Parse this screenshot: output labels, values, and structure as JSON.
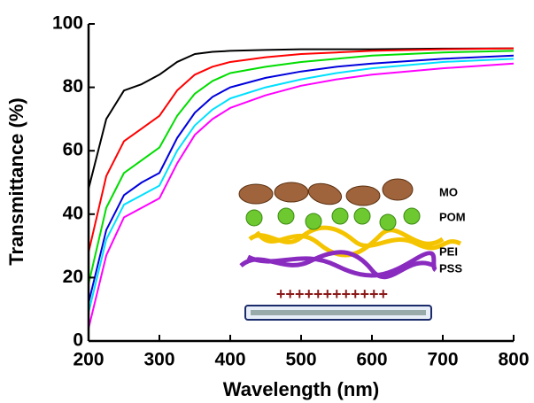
{
  "chart_data": {
    "type": "line",
    "xlabel": "Wavelength (nm)",
    "ylabel": "Transmittance (%)",
    "x": [
      200,
      225,
      250,
      275,
      300,
      325,
      350,
      375,
      400,
      450,
      500,
      550,
      600,
      700,
      800
    ],
    "series": [
      {
        "color": "#000000",
        "values": [
          48,
          70,
          79,
          81,
          84,
          88,
          90.5,
          91.2,
          91.5,
          91.8,
          92,
          92,
          92,
          92.2,
          92.3
        ]
      },
      {
        "color": "#ff0000",
        "values": [
          28,
          52,
          63,
          67,
          71,
          79,
          84,
          86.5,
          88,
          89.5,
          90.5,
          91,
          91.5,
          92,
          92.3
        ]
      },
      {
        "color": "#00dd00",
        "values": [
          18,
          42,
          53,
          57,
          61,
          71,
          78,
          82,
          84.5,
          86.5,
          88,
          89,
          90,
          91,
          91.5
        ]
      },
      {
        "color": "#0000dd",
        "values": [
          12,
          35,
          46,
          50,
          53,
          64,
          72,
          77,
          80,
          83,
          85,
          86.5,
          87.5,
          89,
          90
        ]
      },
      {
        "color": "#00e0ff",
        "values": [
          9,
          32,
          43,
          46,
          49,
          60,
          68,
          73,
          76.5,
          80,
          82.5,
          84.5,
          86,
          88,
          89
        ]
      },
      {
        "color": "#ff00ff",
        "values": [
          4,
          27,
          39,
          42,
          45,
          56,
          65,
          70,
          73.5,
          77.5,
          80.5,
          82.5,
          84,
          86,
          87.5
        ]
      }
    ],
    "xlim": [
      200,
      800
    ],
    "xticks": [
      200,
      300,
      400,
      500,
      600,
      700,
      800
    ],
    "ylim": [
      0,
      100
    ],
    "yticks": [
      0,
      20,
      40,
      60,
      80,
      100
    ],
    "inset_labels": [
      "MO",
      "POM",
      "PEI",
      "PSS"
    ],
    "inset_charges": "++++++++++++"
  }
}
